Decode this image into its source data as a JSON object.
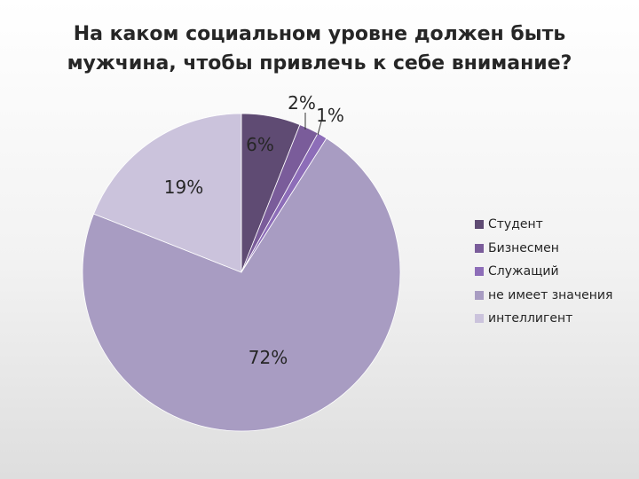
{
  "chart_data": {
    "type": "pie",
    "title": "На каком социальном уровне должен быть\nмужчина, чтобы привлечь к себе внимание?",
    "categories": [
      "Студент",
      "Бизнесмен",
      "Служащий",
      "не имеет значения",
      "интеллигент"
    ],
    "values": [
      6,
      2,
      1,
      72,
      19
    ],
    "labels": [
      "6%",
      "2%",
      "1%",
      "72%",
      "19%"
    ],
    "colors": [
      "#5f4b73",
      "#7a5c9a",
      "#8d6db8",
      "#a89cc2",
      "#cbc3dc"
    ],
    "legend_position": "right"
  }
}
